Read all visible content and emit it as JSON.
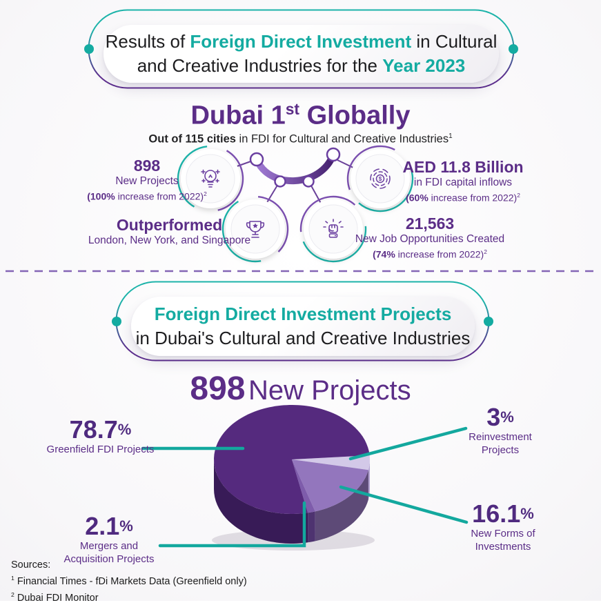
{
  "colors": {
    "teal": "#14aba1",
    "purple": "#5b2d87",
    "purple_deep": "#4f2a7f",
    "ink": "#1d1d1f",
    "divider": "#8465b5",
    "leader_line": "#13a89e"
  },
  "header1": {
    "l1a": "Results of ",
    "l1b": "Foreign Direct Investment",
    "l1c": " in Cultural",
    "l2a": "and Creative Industries for the ",
    "l2b": "Year 2023"
  },
  "ranking": {
    "title_main": "Dubai 1",
    "title_sup": "st",
    "title_rest": " Globally",
    "subtitle_bold": "Out of 115 cities",
    "subtitle_rest": " in FDI for Cultural and Creative Industries",
    "subtitle_sup": "1"
  },
  "stats": [
    {
      "icon": "lightbulb-icon",
      "value": "898",
      "label": "New Projects",
      "note_bold": "(100%",
      "note_rest": " increase from 2022)",
      "note_sup": "2"
    },
    {
      "icon": "coin-icon",
      "value": "AED 11.8 Billion",
      "label": "in FDI capital inflows",
      "note_bold": "(60%",
      "note_rest": " increase from 2022)",
      "note_sup": "2"
    },
    {
      "icon": "trophy-icon",
      "value": "Outperformed",
      "label": "London, New York, and Singapore"
    },
    {
      "icon": "fist-icon",
      "value": "21,563",
      "label": "New Job Opportunities Created",
      "note_bold": "(74%",
      "note_rest": " increase from 2022)",
      "note_sup": "2"
    }
  ],
  "header2": {
    "line1": "Foreign Direct Investment Projects",
    "line2": "in Dubai's Cultural and Creative Industries"
  },
  "pie_title": {
    "value": "898",
    "label": "New Projects"
  },
  "chart_data": {
    "type": "pie",
    "style": "3d",
    "title": "898 New Projects",
    "unit": "%",
    "start_angle_deg": -3,
    "rotation": "clockwise",
    "slices": [
      {
        "label": "Reinvestment Projects",
        "value": 3,
        "color": "#d3c9e8",
        "side_color": "#b2a2d2"
      },
      {
        "label": "New Forms of Investments",
        "value": 16.1,
        "color": "#9376bd",
        "side_color": "#5d4a77"
      },
      {
        "label": "Mergers and Acquisition Projects",
        "value": 2.1,
        "color": "#7e5cab",
        "side_color": "#4e3370"
      },
      {
        "label": "Greenfield FDI Projects",
        "value": 78.7,
        "color": "#552a7e",
        "side_color": "#381b57"
      }
    ]
  },
  "callouts": [
    {
      "value": "78.7",
      "pct": "%",
      "lines": [
        "Greenfield FDI Projects"
      ]
    },
    {
      "value": "3",
      "pct": "%",
      "lines": [
        "Reinvestment",
        "Projects"
      ]
    },
    {
      "value": "16.1",
      "pct": "%",
      "lines": [
        "New Forms of",
        "Investments"
      ]
    },
    {
      "value": "2.1",
      "pct": "%",
      "lines": [
        "Mergers and",
        "Acquisition Projects"
      ]
    }
  ],
  "sources": {
    "heading": "Sources:",
    "item1_sup": "1",
    "item1": " Financial Times - fDi Markets Data (Greenfield only)",
    "item2_sup": "2",
    "item2": " Dubai FDI Monitor"
  }
}
